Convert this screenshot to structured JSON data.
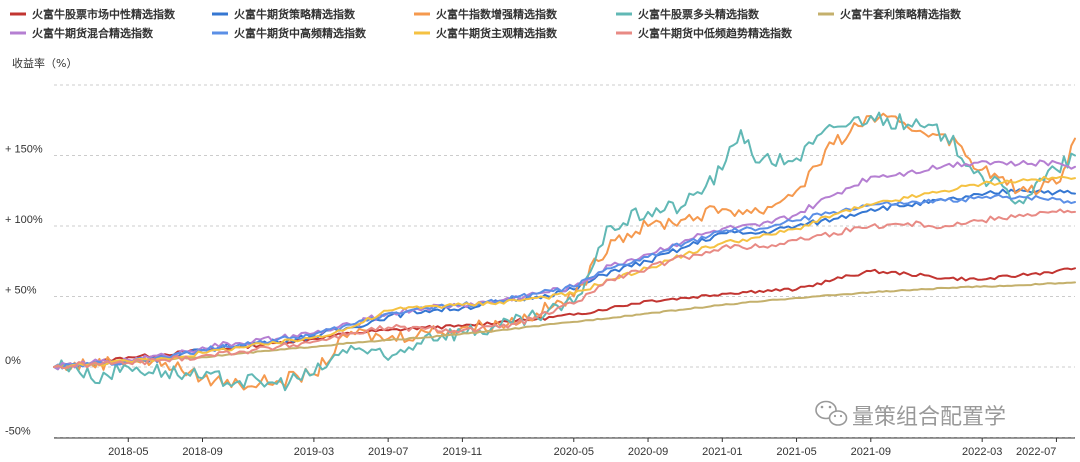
{
  "chart_data": {
    "type": "line",
    "ylabel": "收益率（%）",
    "ylim": [
      -50,
      200
    ],
    "y_ticks": [
      {
        "value": 150,
        "label": "+ 150%"
      },
      {
        "value": 100,
        "label": "+ 100%"
      },
      {
        "value": 50,
        "label": "+ 50%"
      },
      {
        "value": 0,
        "label": "0%"
      },
      {
        "value": -50,
        "label": "-50%"
      }
    ],
    "x_range": [
      "2018-01",
      "2022-08"
    ],
    "x_ticks": [
      "2018-05",
      "2018-09",
      "2019-03",
      "2019-07",
      "2019-11",
      "2020-05",
      "2020-09",
      "2021-01",
      "2021-05",
      "2021-09",
      "2022-03",
      "2022-07"
    ],
    "grid": true,
    "legend_position": "top",
    "watermark": "量策组合配置学",
    "series": [
      {
        "name": "火富牛股票市场中性精选指数",
        "color": "#c23531",
        "points": [
          [
            "2018-01",
            0
          ],
          [
            "2018-03",
            3
          ],
          [
            "2018-05",
            7
          ],
          [
            "2018-07",
            9
          ],
          [
            "2018-09",
            12
          ],
          [
            "2018-11",
            14
          ],
          [
            "2019-01",
            17
          ],
          [
            "2019-03",
            20
          ],
          [
            "2019-05",
            24
          ],
          [
            "2019-07",
            26
          ],
          [
            "2019-09",
            28
          ],
          [
            "2019-11",
            29
          ],
          [
            "2020-01",
            32
          ],
          [
            "2020-03",
            34
          ],
          [
            "2020-05",
            37
          ],
          [
            "2020-07",
            42
          ],
          [
            "2020-09",
            47
          ],
          [
            "2020-11",
            49
          ],
          [
            "2021-01",
            52
          ],
          [
            "2021-03",
            54
          ],
          [
            "2021-05",
            55
          ],
          [
            "2021-07",
            62
          ],
          [
            "2021-09",
            68
          ],
          [
            "2021-11",
            66
          ],
          [
            "2022-01",
            63
          ],
          [
            "2022-03",
            62
          ],
          [
            "2022-05",
            65
          ],
          [
            "2022-07",
            68
          ],
          [
            "2022-08",
            70
          ]
        ]
      },
      {
        "name": "火富牛期货策略精选指数",
        "color": "#3577d2",
        "points": [
          [
            "2018-01",
            0
          ],
          [
            "2018-03",
            2
          ],
          [
            "2018-05",
            4
          ],
          [
            "2018-07",
            6
          ],
          [
            "2018-09",
            12
          ],
          [
            "2018-11",
            16
          ],
          [
            "2019-01",
            18
          ],
          [
            "2019-03",
            22
          ],
          [
            "2019-05",
            28
          ],
          [
            "2019-07",
            36
          ],
          [
            "2019-09",
            40
          ],
          [
            "2019-11",
            42
          ],
          [
            "2020-01",
            46
          ],
          [
            "2020-03",
            50
          ],
          [
            "2020-05",
            55
          ],
          [
            "2020-07",
            68
          ],
          [
            "2020-09",
            75
          ],
          [
            "2020-11",
            85
          ],
          [
            "2021-01",
            95
          ],
          [
            "2021-03",
            95
          ],
          [
            "2021-05",
            100
          ],
          [
            "2021-07",
            105
          ],
          [
            "2021-09",
            112
          ],
          [
            "2021-11",
            115
          ],
          [
            "2022-01",
            118
          ],
          [
            "2022-03",
            122
          ],
          [
            "2022-05",
            126
          ],
          [
            "2022-07",
            124
          ],
          [
            "2022-08",
            123
          ]
        ]
      },
      {
        "name": "火富牛指数增强精选指数",
        "color": "#f5994e",
        "points": [
          [
            "2018-01",
            0
          ],
          [
            "2018-03",
            2
          ],
          [
            "2018-05",
            5
          ],
          [
            "2018-07",
            3
          ],
          [
            "2018-09",
            -8
          ],
          [
            "2018-11",
            -12
          ],
          [
            "2019-01",
            -10
          ],
          [
            "2019-03",
            -5
          ],
          [
            "2019-05",
            25
          ],
          [
            "2019-07",
            20
          ],
          [
            "2019-09",
            25
          ],
          [
            "2019-11",
            28
          ],
          [
            "2020-01",
            30
          ],
          [
            "2020-03",
            38
          ],
          [
            "2020-05",
            50
          ],
          [
            "2020-07",
            90
          ],
          [
            "2020-09",
            100
          ],
          [
            "2020-11",
            105
          ],
          [
            "2021-01",
            112
          ],
          [
            "2021-03",
            110
          ],
          [
            "2021-05",
            125
          ],
          [
            "2021-07",
            158
          ],
          [
            "2021-09",
            178
          ],
          [
            "2021-11",
            170
          ],
          [
            "2022-01",
            165
          ],
          [
            "2022-03",
            140
          ],
          [
            "2022-05",
            125
          ],
          [
            "2022-07",
            130
          ],
          [
            "2022-08",
            162
          ]
        ]
      },
      {
        "name": "火富牛股票多头精选指数",
        "color": "#61b8b5",
        "points": [
          [
            "2018-01",
            0
          ],
          [
            "2018-02",
            2
          ],
          [
            "2018-03",
            -8
          ],
          [
            "2018-05",
            0
          ],
          [
            "2018-07",
            -3
          ],
          [
            "2018-09",
            -8
          ],
          [
            "2018-11",
            -10
          ],
          [
            "2019-01",
            -12
          ],
          [
            "2019-03",
            -5
          ],
          [
            "2019-05",
            15
          ],
          [
            "2019-07",
            5
          ],
          [
            "2019-09",
            22
          ],
          [
            "2019-11",
            25
          ],
          [
            "2020-01",
            28
          ],
          [
            "2020-03",
            35
          ],
          [
            "2020-05",
            45
          ],
          [
            "2020-07",
            100
          ],
          [
            "2020-09",
            110
          ],
          [
            "2020-11",
            115
          ],
          [
            "2021-01",
            140
          ],
          [
            "2021-02",
            168
          ],
          [
            "2021-03",
            145
          ],
          [
            "2021-05",
            148
          ],
          [
            "2021-07",
            170
          ],
          [
            "2021-09",
            178
          ],
          [
            "2021-11",
            172
          ],
          [
            "2022-01",
            165
          ],
          [
            "2022-03",
            135
          ],
          [
            "2022-05",
            118
          ],
          [
            "2022-07",
            140
          ],
          [
            "2022-08",
            150
          ]
        ]
      },
      {
        "name": "火富牛套利策略精选指数",
        "color": "#c4b06c",
        "points": [
          [
            "2018-01",
            0
          ],
          [
            "2018-05",
            4
          ],
          [
            "2018-09",
            7
          ],
          [
            "2019-01",
            12
          ],
          [
            "2019-05",
            17
          ],
          [
            "2019-09",
            21
          ],
          [
            "2020-01",
            26
          ],
          [
            "2020-05",
            32
          ],
          [
            "2020-09",
            38
          ],
          [
            "2021-01",
            44
          ],
          [
            "2021-05",
            49
          ],
          [
            "2021-09",
            53
          ],
          [
            "2022-01",
            56
          ],
          [
            "2022-05",
            58
          ],
          [
            "2022-08",
            60
          ]
        ]
      },
      {
        "name": "火富牛期货混合精选指数",
        "color": "#b57fd2",
        "points": [
          [
            "2018-01",
            0
          ],
          [
            "2018-03",
            3
          ],
          [
            "2018-05",
            5
          ],
          [
            "2018-07",
            8
          ],
          [
            "2018-09",
            14
          ],
          [
            "2018-11",
            17
          ],
          [
            "2019-01",
            20
          ],
          [
            "2019-03",
            24
          ],
          [
            "2019-05",
            30
          ],
          [
            "2019-07",
            38
          ],
          [
            "2019-09",
            42
          ],
          [
            "2019-11",
            44
          ],
          [
            "2020-01",
            47
          ],
          [
            "2020-03",
            52
          ],
          [
            "2020-05",
            57
          ],
          [
            "2020-07",
            72
          ],
          [
            "2020-09",
            80
          ],
          [
            "2020-11",
            90
          ],
          [
            "2021-01",
            98
          ],
          [
            "2021-03",
            100
          ],
          [
            "2021-05",
            108
          ],
          [
            "2021-07",
            122
          ],
          [
            "2021-09",
            135
          ],
          [
            "2021-11",
            138
          ],
          [
            "2022-01",
            143
          ],
          [
            "2022-03",
            146
          ],
          [
            "2022-05",
            144
          ],
          [
            "2022-07",
            145
          ],
          [
            "2022-08",
            142
          ]
        ]
      },
      {
        "name": "火富牛期货中高频精选指数",
        "color": "#5b8fe6",
        "points": [
          [
            "2018-01",
            0
          ],
          [
            "2018-03",
            2
          ],
          [
            "2018-05",
            4
          ],
          [
            "2018-07",
            7
          ],
          [
            "2018-09",
            12
          ],
          [
            "2018-11",
            16
          ],
          [
            "2019-01",
            19
          ],
          [
            "2019-03",
            23
          ],
          [
            "2019-05",
            30
          ],
          [
            "2019-07",
            38
          ],
          [
            "2019-09",
            42
          ],
          [
            "2019-11",
            44
          ],
          [
            "2020-01",
            47
          ],
          [
            "2020-03",
            52
          ],
          [
            "2020-05",
            57
          ],
          [
            "2020-07",
            70
          ],
          [
            "2020-09",
            78
          ],
          [
            "2020-11",
            88
          ],
          [
            "2021-01",
            96
          ],
          [
            "2021-03",
            98
          ],
          [
            "2021-05",
            104
          ],
          [
            "2021-07",
            110
          ],
          [
            "2021-09",
            115
          ],
          [
            "2021-11",
            116
          ],
          [
            "2022-01",
            118
          ],
          [
            "2022-03",
            120
          ],
          [
            "2022-05",
            121
          ],
          [
            "2022-07",
            119
          ],
          [
            "2022-08",
            117
          ]
        ]
      },
      {
        "name": "火富牛期货主观精选指数",
        "color": "#f5c242",
        "points": [
          [
            "2018-01",
            0
          ],
          [
            "2018-03",
            2
          ],
          [
            "2018-05",
            4
          ],
          [
            "2018-07",
            6
          ],
          [
            "2018-09",
            10
          ],
          [
            "2018-11",
            14
          ],
          [
            "2019-01",
            17
          ],
          [
            "2019-03",
            21
          ],
          [
            "2019-05",
            28
          ],
          [
            "2019-07",
            40
          ],
          [
            "2019-09",
            43
          ],
          [
            "2019-11",
            44
          ],
          [
            "2020-01",
            46
          ],
          [
            "2020-03",
            49
          ],
          [
            "2020-05",
            52
          ],
          [
            "2020-07",
            62
          ],
          [
            "2020-09",
            70
          ],
          [
            "2020-11",
            80
          ],
          [
            "2021-01",
            88
          ],
          [
            "2021-03",
            92
          ],
          [
            "2021-05",
            98
          ],
          [
            "2021-07",
            108
          ],
          [
            "2021-09",
            115
          ],
          [
            "2021-11",
            120
          ],
          [
            "2022-01",
            125
          ],
          [
            "2022-03",
            130
          ],
          [
            "2022-05",
            132
          ],
          [
            "2022-07",
            134
          ],
          [
            "2022-08",
            134
          ]
        ]
      },
      {
        "name": "火富牛期货中低频趋势精选指数",
        "color": "#e88a84",
        "points": [
          [
            "2018-01",
            0
          ],
          [
            "2018-03",
            2
          ],
          [
            "2018-05",
            3
          ],
          [
            "2018-07",
            5
          ],
          [
            "2018-09",
            8
          ],
          [
            "2018-11",
            11
          ],
          [
            "2019-01",
            14
          ],
          [
            "2019-03",
            18
          ],
          [
            "2019-05",
            24
          ],
          [
            "2019-07",
            28
          ],
          [
            "2019-09",
            27
          ],
          [
            "2019-11",
            26
          ],
          [
            "2020-01",
            28
          ],
          [
            "2020-03",
            35
          ],
          [
            "2020-05",
            45
          ],
          [
            "2020-07",
            62
          ],
          [
            "2020-09",
            70
          ],
          [
            "2020-11",
            78
          ],
          [
            "2021-01",
            85
          ],
          [
            "2021-03",
            85
          ],
          [
            "2021-05",
            90
          ],
          [
            "2021-07",
            95
          ],
          [
            "2021-09",
            100
          ],
          [
            "2021-11",
            102
          ],
          [
            "2022-01",
            100
          ],
          [
            "2022-03",
            104
          ],
          [
            "2022-05",
            108
          ],
          [
            "2022-07",
            110
          ],
          [
            "2022-08",
            110
          ]
        ]
      }
    ]
  }
}
